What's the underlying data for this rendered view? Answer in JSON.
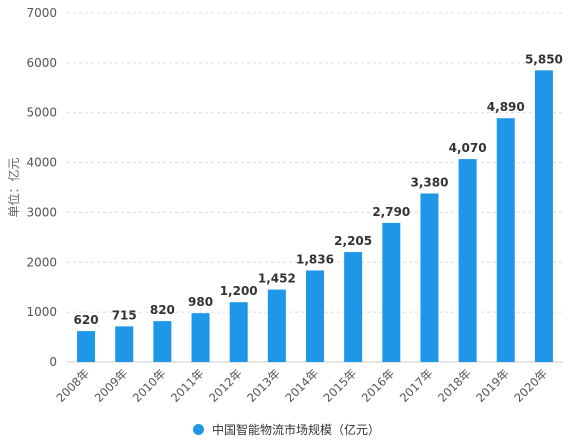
{
  "chart_data": {
    "type": "bar",
    "ylabel": "单位：亿元",
    "xlabel": "",
    "ylim": [
      0,
      7000
    ],
    "yticks": [
      0,
      1000,
      2000,
      3000,
      4000,
      5000,
      6000,
      7000
    ],
    "grid": true,
    "legend_position": "bottom",
    "bar_color": "#1F97E8",
    "categories": [
      "2008年",
      "2009年",
      "2010年",
      "2011年",
      "2012年",
      "2013年",
      "2014年",
      "2015年",
      "2016年",
      "2017年",
      "2018年",
      "2019年",
      "2020年"
    ],
    "series": [
      {
        "name": "中国智能物流市场规模（亿元）",
        "values": [
          620,
          715,
          820,
          980,
          1200,
          1452,
          1836,
          2205,
          2790,
          3380,
          4070,
          4890,
          5850
        ],
        "labels": [
          "620",
          "715",
          "820",
          "980",
          "1,200",
          "1,452",
          "1,836",
          "2,205",
          "2,790",
          "3,380",
          "4,070",
          "4,890",
          "5,850"
        ]
      }
    ]
  }
}
